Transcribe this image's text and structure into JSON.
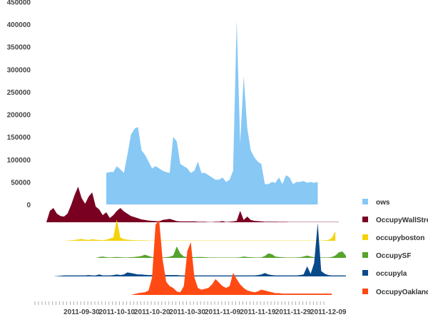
{
  "chart_data": {
    "type": "area",
    "title": "",
    "xlabel": "",
    "ylabel": "",
    "ylim": [
      0,
      450000
    ],
    "yticks": [
      "0",
      "50000",
      "100000",
      "150000",
      "200000",
      "250000",
      "300000",
      "350000",
      "400000",
      "450000"
    ],
    "xticks": [
      "2011-09-30",
      "2011-10-10",
      "2011-10-20",
      "2011-10-30",
      "2011-11-09",
      "2011-11-19",
      "2011-11-29",
      "2011-12-09"
    ],
    "grid": false,
    "legend": "right",
    "series": [
      {
        "name": "ows",
        "color": "#87c8f5",
        "start": "2011-10-07",
        "values": [
          70000,
          72000,
          72000,
          85000,
          78000,
          70000,
          110000,
          155000,
          168000,
          172000,
          120000,
          110000,
          95000,
          80000,
          85000,
          80000,
          75000,
          72000,
          70000,
          150000,
          140000,
          90000,
          85000,
          80000,
          70000,
          75000,
          95000,
          70000,
          70000,
          65000,
          60000,
          55000,
          55000,
          60000,
          50000,
          55000,
          75000,
          410000,
          135000,
          285000,
          170000,
          120000,
          105000,
          95000,
          90000,
          45000,
          45000,
          50000,
          48000,
          60000,
          45000,
          65000,
          60000,
          45000,
          50000,
          50000,
          52000,
          48000,
          50000,
          48000,
          50000
        ]
      },
      {
        "name": "OccupyWallStreet",
        "color": "#7a0022",
        "start": "2011-09-20",
        "values": [
          0,
          40000,
          50000,
          30000,
          22000,
          20000,
          30000,
          60000,
          95000,
          125000,
          85000,
          65000,
          90000,
          105000,
          55000,
          45000,
          25000,
          35000,
          15000,
          25000,
          40000,
          50000,
          38000,
          30000,
          22000,
          18000,
          14000,
          10000,
          8000,
          6000,
          5000,
          4000,
          3000,
          8000,
          10000,
          12000,
          8000,
          4000,
          3000,
          3000,
          3000,
          3000,
          3000,
          2000,
          2000,
          2000,
          1000,
          1000,
          2000,
          2000,
          4000,
          1000,
          2000,
          3000,
          5000,
          40000,
          8000,
          20000,
          8000,
          5000,
          4000,
          3000,
          2000,
          2000,
          2000,
          2000,
          1500,
          1500,
          1500,
          1000,
          1000,
          1000,
          1000,
          1000,
          1000,
          1000,
          1000,
          1000,
          1000,
          1000,
          1000,
          1000,
          1000,
          1000
        ]
      },
      {
        "name": "occupyboston",
        "color": "#f5d20a",
        "start": "2011-09-22",
        "values": [
          0,
          0,
          0,
          0,
          500,
          1000,
          1500,
          2500,
          3500,
          2000,
          1500,
          3000,
          2000,
          1500,
          1000,
          2000,
          4000,
          6000,
          40000,
          6000,
          3000,
          2000,
          1500,
          1000,
          1000,
          800,
          800,
          600,
          600,
          500,
          500,
          500,
          500,
          500,
          500,
          500,
          500,
          500,
          500,
          500,
          500,
          500,
          500,
          500,
          500,
          500,
          500,
          500,
          500,
          500,
          500,
          500,
          500,
          500,
          500,
          500,
          500,
          500,
          500,
          500,
          500,
          500,
          500,
          500,
          500,
          500,
          500,
          500,
          500,
          500,
          500,
          500,
          500,
          500,
          500,
          500,
          500,
          800,
          1500,
          5000,
          18000
        ]
      },
      {
        "name": "OccupySF",
        "color": "#57a32d",
        "start": "2011-10-04",
        "values": [
          0,
          2000,
          3000,
          1500,
          1000,
          1500,
          2000,
          1500,
          1000,
          1000,
          1500,
          2000,
          3000,
          4000,
          7000,
          4000,
          2000,
          1500,
          1000,
          1000,
          1500,
          2500,
          5000,
          25000,
          10000,
          3000,
          2000,
          1500,
          1500,
          2000,
          2000,
          1500,
          1000,
          1000,
          1000,
          800,
          800,
          800,
          800,
          800,
          800,
          1500,
          3000,
          2000,
          1500,
          1000,
          1000,
          1000,
          4000,
          10000,
          8000,
          3000,
          2000,
          1500,
          1000,
          1000,
          1000,
          1000,
          1500,
          3000,
          5000,
          3000,
          1500,
          1000,
          1000,
          1000,
          1000,
          2000,
          5000,
          12000,
          14000,
          5000
        ]
      },
      {
        "name": "occupyla",
        "color": "#0a4a8a",
        "start": "2011-09-22",
        "values": [
          0,
          500,
          1000,
          1500,
          1500,
          1500,
          1500,
          1500,
          1500,
          1500,
          2000,
          1500,
          1500,
          3000,
          1500,
          1500,
          1500,
          2000,
          3000,
          2000,
          3000,
          6000,
          5000,
          4000,
          3000,
          3000,
          2500,
          2000,
          2000,
          3000,
          4000,
          3000,
          2000,
          2000,
          2000,
          2000,
          1500,
          1500,
          1500,
          1500,
          1500,
          1500,
          1500,
          1500,
          1500,
          1500,
          1500,
          1500,
          1500,
          1500,
          1500,
          1500,
          1500,
          1500,
          1500,
          1500,
          1500,
          1500,
          2000,
          3000,
          5000,
          3000,
          2000,
          1500,
          1500,
          1500,
          1500,
          1500,
          1500,
          1500,
          2000,
          3000,
          15000,
          4000,
          20000,
          80000,
          8000,
          4000,
          2000,
          1500,
          1500,
          1500,
          1500,
          1500
        ]
      },
      {
        "name": "OccupyOakland",
        "color": "#ff4a14",
        "start": "2011-10-14",
        "values": [
          0,
          1000,
          2000,
          2500,
          3000,
          5000,
          20000,
          80000,
          85000,
          40000,
          15000,
          10000,
          8000,
          4000,
          3000,
          10000,
          50000,
          60000,
          20000,
          8000,
          6000,
          7000,
          8000,
          12000,
          18000,
          14000,
          10000,
          8000,
          10000,
          25000,
          18000,
          12000,
          8000,
          5000,
          4000,
          3000,
          4000,
          6000,
          5000,
          4000,
          3000,
          2000,
          2000,
          1500,
          1500,
          1500,
          1500,
          1500,
          1500,
          1500,
          1500,
          1500,
          1500,
          1500,
          1500,
          1500,
          1500,
          1500
        ]
      }
    ]
  }
}
